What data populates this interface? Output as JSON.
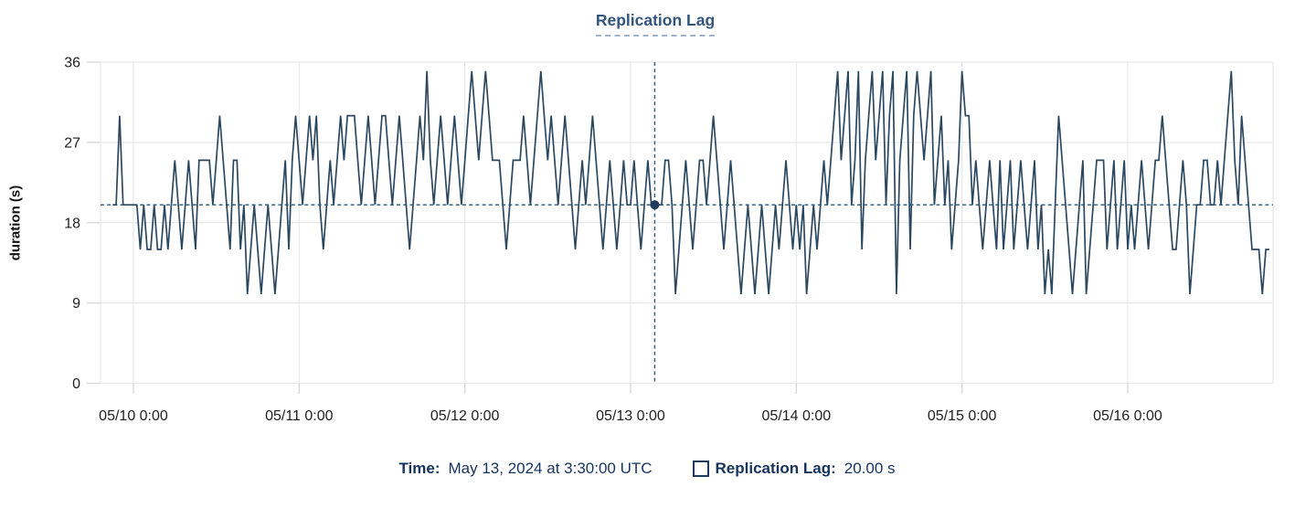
{
  "title": "Replication Lag",
  "y_axis": {
    "label": "duration (s)",
    "ticks": [
      0,
      9,
      18,
      27,
      36
    ]
  },
  "x_axis": {
    "tick_labels": [
      "05/10 0:00",
      "05/11 0:00",
      "05/12 0:00",
      "05/13 0:00",
      "05/14 0:00",
      "05/15 0:00",
      "05/16 0:00"
    ]
  },
  "tooltip": {
    "time_label": "Time:",
    "time_value": "May 13, 2024 at 3:30:00 UTC",
    "series_label": "Replication Lag:",
    "series_value": "20.00 s"
  },
  "crosshair": {
    "day_offset": 3.145833,
    "value": 20
  },
  "colors": {
    "line": "#2b4861",
    "crosshair": "#2e5a74",
    "dot": "#1f3c5c",
    "grid": "#e9e9eb",
    "tick": "#d7d7d9",
    "tick_label": "#1e1e1e",
    "title": "#33567e",
    "legend_text": "#16335e"
  },
  "chart_data": {
    "type": "line",
    "title": "Replication Lag",
    "xlabel": "",
    "ylabel": "duration (s)",
    "ylim": [
      0,
      36
    ],
    "y_ticks": [
      0,
      9,
      18,
      27,
      36
    ],
    "grid": true,
    "legend_position": "bottom",
    "x_unit": "days since 2024-05-10 00:00 UTC",
    "x_domain_days": [
      -0.1985,
      6.877
    ],
    "x_tick_days": [
      0,
      1,
      2,
      3,
      4,
      5,
      6
    ],
    "series": [
      {
        "name": "Replication Lag",
        "start": "2024-05-09 21:00 UTC",
        "start_day_offset": -0.125,
        "interval_minutes": 30,
        "values": [
          20,
          20,
          30,
          20,
          20,
          20,
          20,
          20,
          15,
          20,
          15,
          15,
          20,
          15,
          15,
          20,
          15,
          20,
          25,
          20,
          15,
          20,
          25,
          20,
          15,
          25,
          25,
          25,
          25,
          20,
          25,
          30,
          25,
          20,
          15,
          25,
          25,
          15,
          20,
          10,
          15,
          20,
          15,
          10,
          15,
          20,
          15,
          10,
          15,
          20,
          25,
          15,
          25,
          30,
          25,
          20,
          25,
          30,
          25,
          30,
          20,
          15,
          20,
          25,
          20,
          25,
          30,
          25,
          30,
          30,
          30,
          25,
          20,
          25,
          30,
          25,
          20,
          25,
          30,
          30,
          25,
          20,
          25,
          30,
          25,
          20,
          15,
          20,
          25,
          30,
          25,
          35,
          25,
          20,
          25,
          30,
          25,
          20,
          25,
          30,
          25,
          20,
          25,
          30,
          35,
          30,
          25,
          30,
          35,
          30,
          25,
          25,
          25,
          20,
          15,
          20,
          25,
          25,
          25,
          30,
          25,
          20,
          25,
          30,
          35,
          30,
          25,
          30,
          25,
          20,
          25,
          30,
          25,
          20,
          15,
          20,
          25,
          20,
          25,
          30,
          25,
          20,
          15,
          20,
          25,
          20,
          15,
          20,
          25,
          20,
          20,
          25,
          20,
          15,
          20,
          25,
          20,
          20,
          20,
          20,
          25,
          25,
          20,
          10,
          15,
          20,
          25,
          20,
          15,
          20,
          25,
          25,
          20,
          25,
          30,
          25,
          20,
          15,
          20,
          25,
          20,
          15,
          10,
          15,
          20,
          15,
          10,
          15,
          20,
          15,
          10,
          15,
          20,
          15,
          20,
          25,
          20,
          15,
          20,
          15,
          20,
          10,
          15,
          20,
          15,
          20,
          25,
          20,
          25,
          30,
          35,
          25,
          30,
          35,
          20,
          25,
          35,
          15,
          25,
          30,
          35,
          25,
          30,
          35,
          20,
          30,
          35,
          10,
          25,
          30,
          35,
          15,
          30,
          35,
          30,
          25,
          30,
          35,
          20,
          25,
          30,
          20,
          25,
          15,
          20,
          25,
          35,
          30,
          30,
          20,
          25,
          20,
          15,
          20,
          25,
          20,
          15,
          25,
          15,
          20,
          25,
          15,
          20,
          25,
          20,
          15,
          20,
          25,
          15,
          20,
          10,
          15,
          10,
          20,
          30,
          25,
          20,
          15,
          10,
          15,
          20,
          25,
          10,
          15,
          20,
          25,
          25,
          25,
          15,
          20,
          25,
          15,
          20,
          25,
          15,
          20,
          15,
          20,
          25,
          20,
          15,
          20,
          25,
          25,
          30,
          25,
          20,
          15,
          15,
          20,
          25,
          20,
          10,
          15,
          20,
          20,
          25,
          25,
          20,
          20,
          25,
          20,
          25,
          30,
          35,
          25,
          20,
          30,
          25,
          20,
          15,
          15,
          15,
          10,
          15,
          15
        ]
      }
    ]
  }
}
